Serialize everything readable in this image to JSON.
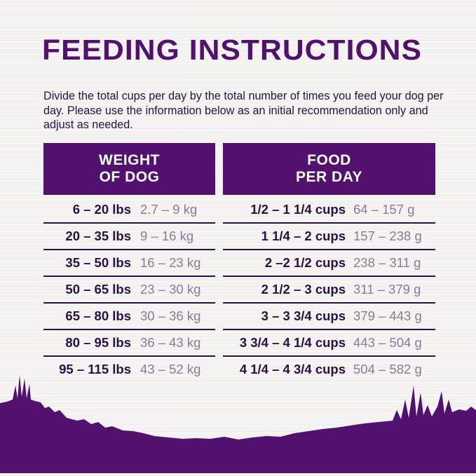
{
  "title": "FEEDING INSTRUCTIONS",
  "intro": "Divide the total cups per day by the total number of times you feed your dog per day. Please use the information below as an initial recommendation only and adjust as needed.",
  "headers": {
    "weight_line1": "WEIGHT",
    "weight_line2": "OF DOG",
    "food_line1": "FOOD",
    "food_line2": "PER DAY"
  },
  "rows": [
    {
      "lbs": "6 – 20 lbs",
      "kg": "2.7 – 9 kg",
      "cups": "1/2 – 1 1/4 cups",
      "grams": "64 – 157 g"
    },
    {
      "lbs": "20 – 35 lbs",
      "kg": "9 – 16 kg",
      "cups": "1 1/4 – 2 cups",
      "grams": "157 – 238 g"
    },
    {
      "lbs": "35 – 50 lbs",
      "kg": "16 – 23 kg",
      "cups": "2 –2 1/2 cups",
      "grams": "238 – 311 g"
    },
    {
      "lbs": "50 – 65 lbs",
      "kg": "23 – 30 kg",
      "cups": "2 1/2 – 3 cups",
      "grams": "311 – 379 g"
    },
    {
      "lbs": "65 – 80 lbs",
      "kg": "30 – 36 kg",
      "cups": "3 – 3 3/4 cups",
      "grams": "379 – 443 g"
    },
    {
      "lbs": "80 – 95 lbs",
      "kg": "36 – 43 kg",
      "cups": "3 3/4 – 4 1/4 cups",
      "grams": "443 – 504 g"
    },
    {
      "lbs": "95 – 115 lbs",
      "kg": "43 – 52 kg",
      "cups": "4 1/4 – 4 3/4 cups",
      "grams": "504 – 582 g"
    }
  ],
  "colors": {
    "brand_purple": "#52116f",
    "text_dark": "#2a0f45",
    "text_muted": "#8a7a99"
  }
}
